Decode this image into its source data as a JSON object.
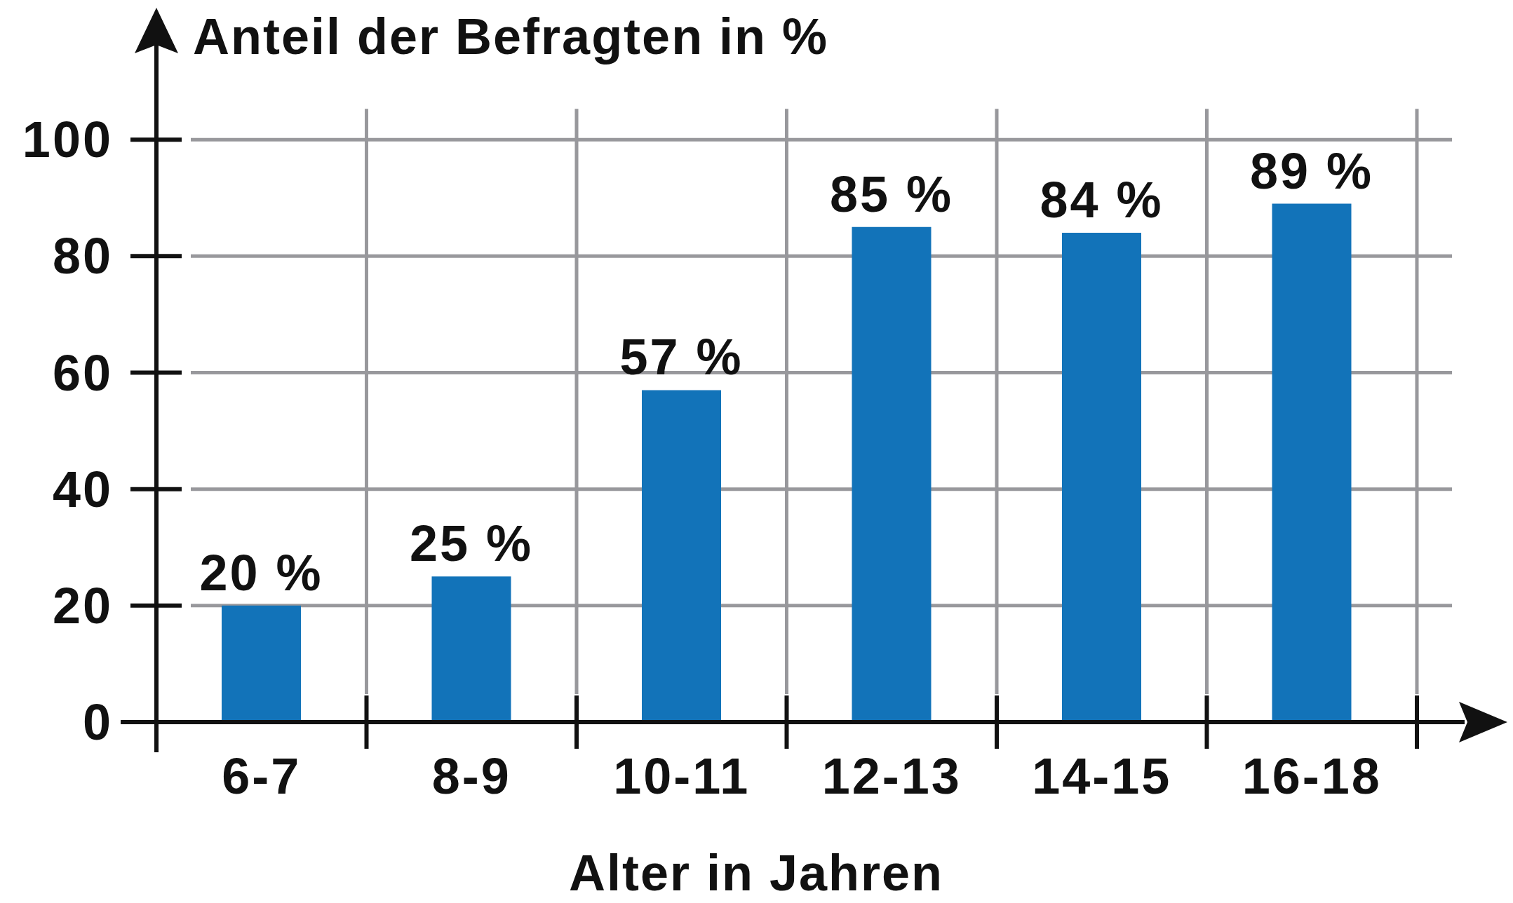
{
  "chart_data": {
    "type": "bar",
    "ylabel": "Anteil der Befragten in %",
    "xlabel": "Alter in Jahren",
    "categories": [
      "6-7",
      "8-9",
      "10-11",
      "12-13",
      "14-15",
      "16-18"
    ],
    "values": [
      20,
      25,
      57,
      85,
      84,
      89
    ],
    "value_labels": [
      "20 %",
      "25 %",
      "57 %",
      "85 %",
      "84 %",
      "89 %"
    ],
    "color": "#1273b9",
    "ylim": [
      0,
      120
    ],
    "yticks": [
      0,
      20,
      40,
      60,
      80,
      100
    ],
    "grid": true
  }
}
